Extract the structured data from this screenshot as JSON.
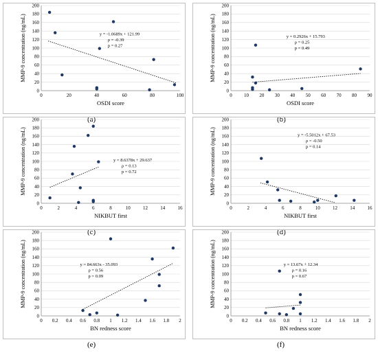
{
  "chart_data": [
    {
      "type": "scatter",
      "panel_label": "(a)",
      "xlabel": "OSDI score",
      "ylabel": "MMP-9 concentration (ng/mL)",
      "xlim": [
        0,
        100
      ],
      "ylim": [
        0,
        200
      ],
      "xticks": [
        0,
        20,
        40,
        60,
        80,
        100
      ],
      "yticks": [
        0,
        20,
        40,
        60,
        80,
        100,
        120,
        140,
        160,
        180,
        200
      ],
      "points": [
        [
          6,
          184
        ],
        [
          10,
          136
        ],
        [
          15,
          37
        ],
        [
          40,
          7
        ],
        [
          40,
          4
        ],
        [
          42,
          99
        ],
        [
          52,
          162
        ],
        [
          78,
          2
        ],
        [
          81,
          73
        ],
        [
          96,
          14
        ]
      ],
      "trend": {
        "slope": -1.0689,
        "intercept": 121.99,
        "x_range": [
          5,
          97
        ]
      },
      "annotations": [
        "y = -1.0689x + 121.99",
        "ρ = -0.39",
        "p = 0.27"
      ],
      "point_color": "#1f3864"
    },
    {
      "type": "scatter",
      "panel_label": "(b)",
      "xlabel": "OSDI score",
      "ylabel": "MMP-9 concentration (ng/mL)",
      "xlim": [
        0,
        90
      ],
      "ylim": [
        0,
        200
      ],
      "xticks": [
        0,
        10,
        20,
        30,
        40,
        50,
        60,
        70,
        80,
        90
      ],
      "yticks": [
        0,
        20,
        40,
        60,
        80,
        100,
        120,
        140,
        160,
        180,
        200
      ],
      "points": [
        [
          14,
          32
        ],
        [
          14,
          7
        ],
        [
          14,
          3
        ],
        [
          16,
          107
        ],
        [
          16,
          18
        ],
        [
          25,
          2
        ],
        [
          46,
          5
        ],
        [
          84,
          51
        ]
      ],
      "trend": {
        "slope": 0.2926,
        "intercept": 15.793,
        "x_range": [
          14,
          84
        ]
      },
      "annotations": [
        "y = 0.2926x + 15.793",
        "ρ = 0.25",
        "p = 0.49"
      ],
      "point_color": "#1f3864"
    },
    {
      "type": "scatter",
      "panel_label": "(c)",
      "xlabel": "NIKBUT first",
      "ylabel": "MMP-9 concentration (ng/mL)",
      "xlim": [
        0,
        16
      ],
      "ylim": [
        0,
        200
      ],
      "xticks": [
        0,
        2,
        4,
        6,
        8,
        10,
        12,
        14,
        16
      ],
      "yticks": [
        0,
        20,
        40,
        60,
        80,
        100,
        120,
        140,
        160,
        180,
        200
      ],
      "points": [
        [
          1,
          13
        ],
        [
          3.6,
          70
        ],
        [
          3.8,
          136
        ],
        [
          4.3,
          2
        ],
        [
          4.5,
          37
        ],
        [
          5.4,
          162
        ],
        [
          6.0,
          184
        ],
        [
          6.0,
          7
        ],
        [
          6.0,
          4
        ],
        [
          6.6,
          99
        ]
      ],
      "trend": {
        "slope": 8.6378,
        "intercept": 29.637,
        "x_range": [
          1,
          6.6
        ]
      },
      "annotations": [
        "y = 8.6378x + 29.637",
        "ρ = 0.13",
        "p = 0.72"
      ],
      "point_color": "#1f3864"
    },
    {
      "type": "scatter",
      "panel_label": "(d)",
      "xlabel": "NIKBUT first",
      "ylabel": "MMP-9 concentration (ng/mL)",
      "xlim": [
        0,
        16
      ],
      "ylim": [
        0,
        200
      ],
      "xticks": [
        0,
        2,
        4,
        6,
        8,
        10,
        12,
        14,
        16
      ],
      "yticks": [
        0,
        20,
        40,
        60,
        80,
        100,
        120,
        140,
        160,
        180,
        200
      ],
      "points": [
        [
          3.5,
          107
        ],
        [
          4.2,
          51
        ],
        [
          5.4,
          32
        ],
        [
          5.6,
          7
        ],
        [
          6.9,
          5
        ],
        [
          9.6,
          3
        ],
        [
          10.0,
          7
        ],
        [
          12.1,
          18
        ],
        [
          14.2,
          7
        ]
      ],
      "trend": {
        "slope": -5.5012,
        "intercept": 67.53,
        "x_range": [
          3.4,
          12.0
        ]
      },
      "annotations": [
        "y = -5.5012x + 67.53",
        "ρ = -0.50",
        "p = 0.14"
      ],
      "point_color": "#1f3864"
    },
    {
      "type": "scatter",
      "panel_label": "(e)",
      "xlabel": "BN redness score",
      "ylabel": "MMP-9 concentration (ng/mL)",
      "xlim": [
        0,
        2
      ],
      "ylim": [
        0,
        200
      ],
      "xticks": [
        0,
        0.2,
        0.4,
        0.6,
        0.8,
        1,
        1.2,
        1.4,
        1.6,
        1.8,
        2
      ],
      "yticks": [
        0,
        20,
        40,
        60,
        80,
        100,
        120,
        140,
        160,
        180,
        200
      ],
      "points": [
        [
          0.6,
          13
        ],
        [
          0.7,
          3
        ],
        [
          0.8,
          7
        ],
        [
          1.0,
          184
        ],
        [
          1.1,
          2
        ],
        [
          1.5,
          37
        ],
        [
          1.6,
          136
        ],
        [
          1.7,
          99
        ],
        [
          1.7,
          72
        ],
        [
          1.9,
          162
        ]
      ],
      "trend": {
        "slope": 84.663,
        "intercept": -35.093,
        "x_range": [
          0.6,
          1.9
        ]
      },
      "annotations": [
        "y = 84.663x - 35.093",
        "ρ = 0.56",
        "p = 0.09"
      ],
      "point_color": "#1f3864"
    },
    {
      "type": "scatter",
      "panel_label": "(f)",
      "xlabel": "BN redness score",
      "ylabel": "MMP-9 concentration (ng/mL)",
      "xlim": [
        0,
        2
      ],
      "ylim": [
        0,
        200
      ],
      "xticks": [
        0,
        0.2,
        0.4,
        0.6,
        0.8,
        1,
        1.2,
        1.4,
        1.6,
        1.8,
        2
      ],
      "yticks": [
        0,
        20,
        40,
        60,
        80,
        100,
        120,
        140,
        160,
        180,
        200
      ],
      "points": [
        [
          0.5,
          7
        ],
        [
          0.7,
          107
        ],
        [
          0.7,
          5
        ],
        [
          0.8,
          3
        ],
        [
          0.9,
          18
        ],
        [
          1.0,
          51
        ],
        [
          1.0,
          32
        ],
        [
          1.0,
          5
        ]
      ],
      "trend": {
        "slope": 13.67,
        "intercept": 12.34,
        "x_range": [
          0.5,
          1.0
        ]
      },
      "annotations": [
        "y = 13.67x + 12.34",
        "ρ = 0.16",
        "p = 0.67"
      ],
      "point_color": "#1f3864"
    }
  ]
}
